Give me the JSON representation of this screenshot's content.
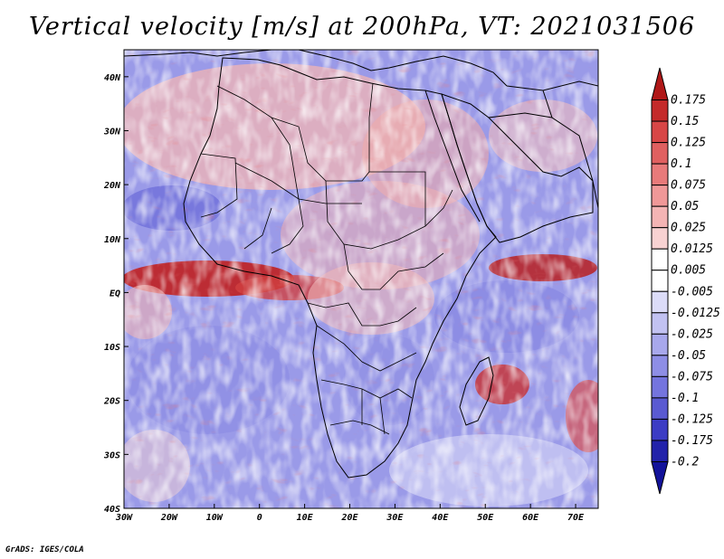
{
  "title": "Vertical velocity [m/s] at 200hPa, VT: 2021031506",
  "credit": "GrADS: IGES/COLA",
  "map": {
    "lon_range": [
      -30,
      75
    ],
    "lat_range": [
      -40,
      45
    ],
    "lon_ticks": [
      "30W",
      "20W",
      "10W",
      "0",
      "10E",
      "20E",
      "30E",
      "40E",
      "50E",
      "60E",
      "70E"
    ],
    "lat_ticks": [
      "40N",
      "30N",
      "20N",
      "10N",
      "EQ",
      "10S",
      "20S",
      "30S",
      "40S"
    ]
  },
  "colorbar": {
    "levels": [
      "0.175",
      "0.15",
      "0.125",
      "0.1",
      "0.075",
      "0.05",
      "0.025",
      "0.0125",
      "0.005",
      "-0.005",
      "-0.0125",
      "-0.025",
      "-0.05",
      "-0.075",
      "-0.1",
      "-0.125",
      "-0.175",
      "-0.2"
    ],
    "colors": [
      "#b01818",
      "#c42a2a",
      "#d84646",
      "#e06060",
      "#e87a7a",
      "#f09898",
      "#f4b4b4",
      "#f8d2d2",
      "#ffffff",
      "#ffffff",
      "#dcdcf8",
      "#c2c2f2",
      "#a8a8ec",
      "#8e8ee6",
      "#7474de",
      "#5a5ad2",
      "#3c3cc4",
      "#2222aa",
      "#12129a"
    ]
  }
}
